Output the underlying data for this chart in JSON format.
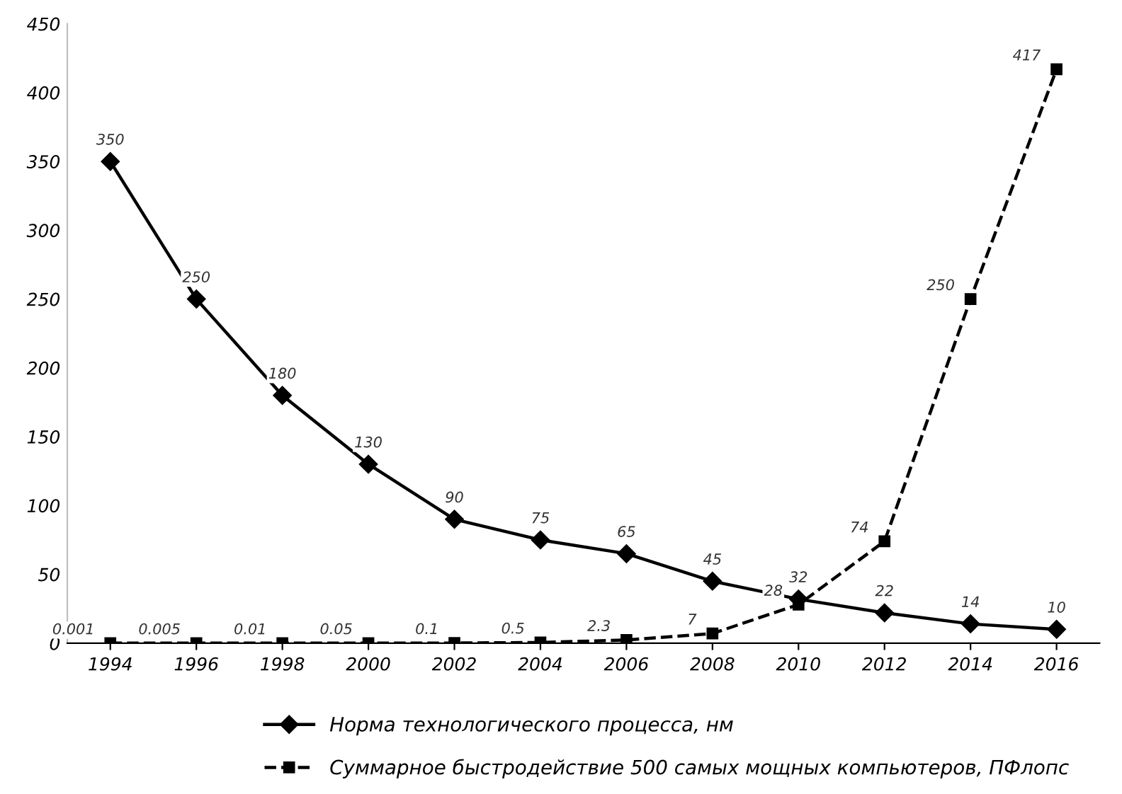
{
  "chart_data": {
    "type": "line",
    "categories": [
      "1994",
      "1996",
      "1998",
      "2000",
      "2002",
      "2004",
      "2006",
      "2008",
      "2010",
      "2012",
      "2014",
      "2016"
    ],
    "series": [
      {
        "name": "Норма технологического процесса, нм",
        "color": "#000000",
        "marker": "diamond",
        "line_style": "solid",
        "values": [
          350,
          250,
          180,
          130,
          90,
          75,
          65,
          45,
          32,
          22,
          14,
          10
        ]
      },
      {
        "name": "Суммарное быстродействие 500 самых мощных компьютеров, ПФлопс",
        "color": "#000000",
        "marker": "square",
        "line_style": "dashed",
        "values": [
          0.001,
          0.005,
          0.01,
          0.05,
          0.1,
          0.5,
          2.3,
          7,
          28,
          74,
          250,
          417
        ]
      }
    ],
    "ylim": [
      0,
      450
    ],
    "yticks": [
      0,
      50,
      100,
      150,
      200,
      250,
      300,
      350,
      400,
      450
    ],
    "grid": false,
    "legend": "bottom",
    "data_labels": true
  }
}
